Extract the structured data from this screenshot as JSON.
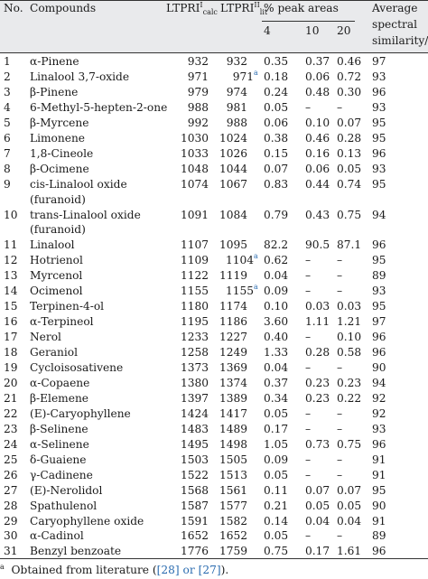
{
  "header": {
    "no": "No.",
    "compounds": "Compounds",
    "ltpri_base": "LTPRI",
    "calc_sup": "I",
    "calc_sub": "calc",
    "lit_sup": "II",
    "lit_sub": "lit",
    "peak_areas": "% peak areas",
    "p4": "4",
    "p10": "10",
    "p20": "20",
    "sim_line1": "Average",
    "sim_line2": "spectral",
    "sim_line3": "similarity/%"
  },
  "rows": [
    {
      "no": "1",
      "compound": "α-Pinene",
      "calc": "932",
      "lit": "932",
      "lit_note": "",
      "p4": "0.35",
      "p10": "0.37",
      "p20": "0.46",
      "sim": "97"
    },
    {
      "no": "2",
      "compound": "Linalool 3,7-oxide",
      "calc": "971",
      "lit": "971",
      "lit_note": "a",
      "p4": "0.18",
      "p10": "0.06",
      "p20": "0.72",
      "sim": "93"
    },
    {
      "no": "3",
      "compound": "β-Pinene",
      "calc": "979",
      "lit": "974",
      "lit_note": "",
      "p4": "0.24",
      "p10": "0.48",
      "p20": "0.30",
      "sim": "96"
    },
    {
      "no": "4",
      "compound": "6-Methyl-5-hepten-2-one",
      "calc": "988",
      "lit": "981",
      "lit_note": "",
      "p4": "0.05",
      "p10": "–",
      "p20": "–",
      "sim": "93"
    },
    {
      "no": "5",
      "compound": "β-Myrcene",
      "calc": "992",
      "lit": "988",
      "lit_note": "",
      "p4": "0.06",
      "p10": "0.10",
      "p20": "0.07",
      "sim": "95"
    },
    {
      "no": "6",
      "compound": "Limonene",
      "calc": "1030",
      "lit": "1024",
      "lit_note": "",
      "p4": "0.38",
      "p10": "0.46",
      "p20": "0.28",
      "sim": "95"
    },
    {
      "no": "7",
      "compound": "1,8-Cineole",
      "calc": "1033",
      "lit": "1026",
      "lit_note": "",
      "p4": "0.15",
      "p10": "0.16",
      "p20": "0.13",
      "sim": "96"
    },
    {
      "no": "8",
      "compound": "β-Ocimene",
      "calc": "1048",
      "lit": "1044",
      "lit_note": "",
      "p4": "0.07",
      "p10": "0.06",
      "p20": "0.05",
      "sim": "93"
    },
    {
      "no": "9",
      "compound": "cis-Linalool oxide",
      "compound2": "(furanoid)",
      "calc": "1074",
      "lit": "1067",
      "lit_note": "",
      "p4": "0.83",
      "p10": "0.44",
      "p20": "0.74",
      "sim": "95"
    },
    {
      "no": "10",
      "compound": "trans-Linalool oxide",
      "compound2": "(furanoid)",
      "calc": "1091",
      "lit": "1084",
      "lit_note": "",
      "p4": "0.79",
      "p10": "0.43",
      "p20": "0.75",
      "sim": "94"
    },
    {
      "no": "11",
      "compound": "Linalool",
      "calc": "1107",
      "lit": "1095",
      "lit_note": "",
      "p4": "82.2",
      "p10": "90.5",
      "p20": "87.1",
      "sim": "96"
    },
    {
      "no": "12",
      "compound": "Hotrienol",
      "calc": "1109",
      "lit": "1104",
      "lit_note": "a",
      "p4": "0.62",
      "p10": "–",
      "p20": "–",
      "sim": "95"
    },
    {
      "no": "13",
      "compound": "Myrcenol",
      "calc": "1122",
      "lit": "1119",
      "lit_note": "",
      "p4": "0.04",
      "p10": "–",
      "p20": "–",
      "sim": "89"
    },
    {
      "no": "14",
      "compound": "Ocimenol",
      "calc": "1155",
      "lit": "1155",
      "lit_note": "a",
      "p4": "0.09",
      "p10": "–",
      "p20": "–",
      "sim": "93"
    },
    {
      "no": "15",
      "compound": "Terpinen-4-ol",
      "calc": "1180",
      "lit": "1174",
      "lit_note": "",
      "p4": "0.10",
      "p10": "0.03",
      "p20": "0.03",
      "sim": "95"
    },
    {
      "no": "16",
      "compound": "α-Terpineol",
      "calc": "1195",
      "lit": "1186",
      "lit_note": "",
      "p4": "3.60",
      "p10": "1.11",
      "p20": "1.21",
      "sim": "97"
    },
    {
      "no": "17",
      "compound": "Nerol",
      "calc": "1233",
      "lit": "1227",
      "lit_note": "",
      "p4": "0.40",
      "p10": "–",
      "p20": "0.10",
      "sim": "96"
    },
    {
      "no": "18",
      "compound": "Geraniol",
      "calc": "1258",
      "lit": "1249",
      "lit_note": "",
      "p4": "1.33",
      "p10": "0.28",
      "p20": "0.58",
      "sim": "96"
    },
    {
      "no": "19",
      "compound": "Cycloisosativene",
      "calc": "1373",
      "lit": "1369",
      "lit_note": "",
      "p4": "0.04",
      "p10": "–",
      "p20": "–",
      "sim": "90"
    },
    {
      "no": "20",
      "compound": "α-Copaene",
      "calc": "1380",
      "lit": "1374",
      "lit_note": "",
      "p4": "0.37",
      "p10": "0.23",
      "p20": "0.23",
      "sim": "94"
    },
    {
      "no": "21",
      "compound": "β-Elemene",
      "calc": "1397",
      "lit": "1389",
      "lit_note": "",
      "p4": "0.34",
      "p10": "0.23",
      "p20": "0.22",
      "sim": "92"
    },
    {
      "no": "22",
      "compound": "(E)-Caryophyllene",
      "calc": "1424",
      "lit": "1417",
      "lit_note": "",
      "p4": "0.05",
      "p10": "–",
      "p20": "–",
      "sim": "92"
    },
    {
      "no": "23",
      "compound": "β-Selinene",
      "calc": "1483",
      "lit": "1489",
      "lit_note": "",
      "p4": "0.17",
      "p10": "–",
      "p20": "–",
      "sim": "93"
    },
    {
      "no": "24",
      "compound": "α-Selinene",
      "calc": "1495",
      "lit": "1498",
      "lit_note": "",
      "p4": "1.05",
      "p10": "0.73",
      "p20": "0.75",
      "sim": "96"
    },
    {
      "no": "25",
      "compound": "δ-Guaiene",
      "calc": "1503",
      "lit": "1505",
      "lit_note": "",
      "p4": "0.09",
      "p10": "–",
      "p20": "–",
      "sim": "91"
    },
    {
      "no": "26",
      "compound": "γ-Cadinene",
      "calc": "1522",
      "lit": "1513",
      "lit_note": "",
      "p4": "0.05",
      "p10": "–",
      "p20": "–",
      "sim": "91"
    },
    {
      "no": "27",
      "compound": "(E)-Nerolidol",
      "calc": "1568",
      "lit": "1561",
      "lit_note": "",
      "p4": "0.11",
      "p10": "0.07",
      "p20": "0.07",
      "sim": "95"
    },
    {
      "no": "28",
      "compound": "Spathulenol",
      "calc": "1587",
      "lit": "1577",
      "lit_note": "",
      "p4": "0.21",
      "p10": "0.05",
      "p20": "0.05",
      "sim": "90"
    },
    {
      "no": "29",
      "compound": "Caryophyllene oxide",
      "calc": "1591",
      "lit": "1582",
      "lit_note": "",
      "p4": "0.14",
      "p10": "0.04",
      "p20": "0.04",
      "sim": "91"
    },
    {
      "no": "30",
      "compound": "α-Cadinol",
      "calc": "1652",
      "lit": "1652",
      "lit_note": "",
      "p4": "0.05",
      "p10": "–",
      "p20": "–",
      "sim": "89"
    },
    {
      "no": "31",
      "compound": "Benzyl benzoate",
      "calc": "1776",
      "lit": "1759",
      "lit_note": "",
      "p4": "0.75",
      "p10": "0.17",
      "p20": "1.61",
      "sim": "96"
    }
  ],
  "footnote": {
    "mark": "a",
    "text": "Obtained from literature (",
    "refs": "[28] or [27]",
    "close": ")."
  }
}
